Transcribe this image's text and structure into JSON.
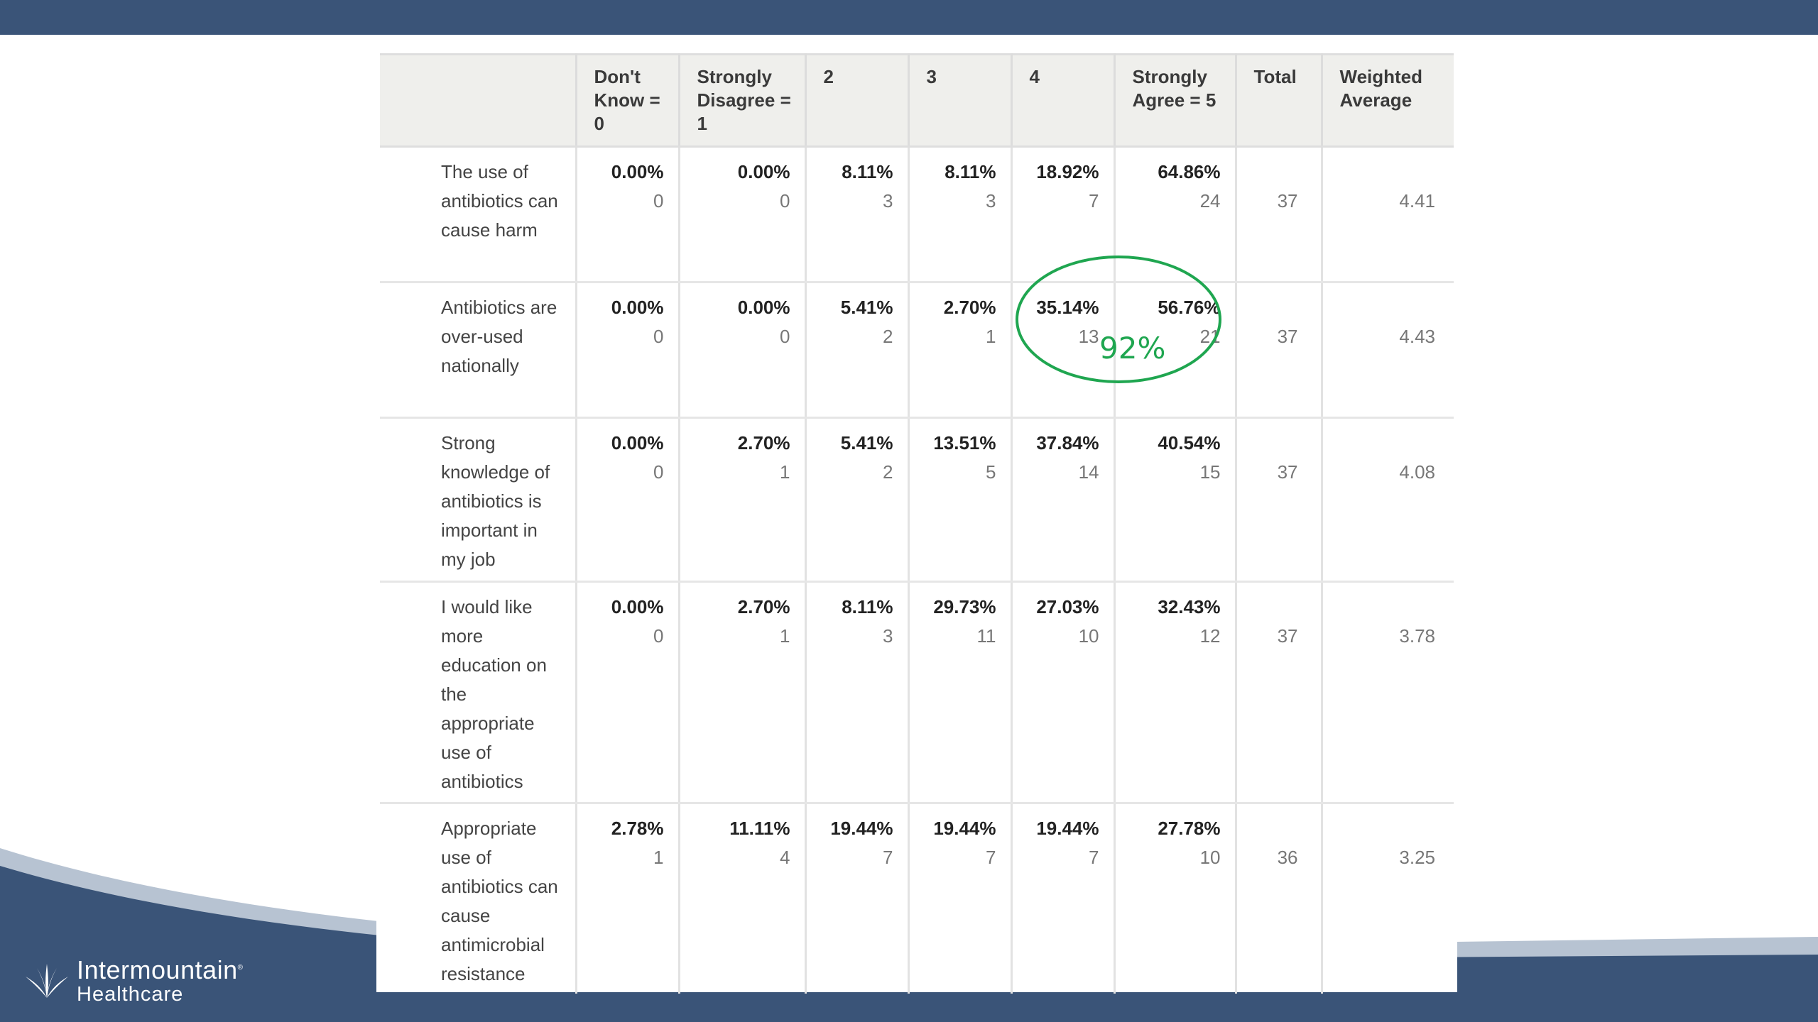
{
  "brand": {
    "line1": "Intermountain",
    "line2": "Healthcare",
    "trademark": "®",
    "logo_icon": "intermountain-leaf-logo-icon",
    "bar_color": "#3a5478",
    "accent_color": "#1fa650"
  },
  "table": {
    "headers": [
      "",
      "Don't Know = 0",
      "Strongly Disagree = 1",
      "2",
      "3",
      "4",
      "Strongly Agree = 5",
      "Total",
      "Weighted Average"
    ],
    "rows": [
      {
        "question": "The use of antibiotics can cause harm",
        "cells": [
          {
            "pct": "0.00%",
            "count": "0"
          },
          {
            "pct": "0.00%",
            "count": "0"
          },
          {
            "pct": "8.11%",
            "count": "3"
          },
          {
            "pct": "8.11%",
            "count": "3"
          },
          {
            "pct": "18.92%",
            "count": "7"
          },
          {
            "pct": "64.86%",
            "count": "24"
          }
        ],
        "total": "37",
        "weighted_average": "4.41"
      },
      {
        "question": "Antibiotics are over-used nationally",
        "cells": [
          {
            "pct": "0.00%",
            "count": "0"
          },
          {
            "pct": "0.00%",
            "count": "0"
          },
          {
            "pct": "5.41%",
            "count": "2"
          },
          {
            "pct": "2.70%",
            "count": "1"
          },
          {
            "pct": "35.14%",
            "count": "13"
          },
          {
            "pct": "56.76%",
            "count": "21"
          }
        ],
        "total": "37",
        "weighted_average": "4.43"
      },
      {
        "question": "Strong knowledge of antibiotics is important in my job",
        "cells": [
          {
            "pct": "0.00%",
            "count": "0"
          },
          {
            "pct": "2.70%",
            "count": "1"
          },
          {
            "pct": "5.41%",
            "count": "2"
          },
          {
            "pct": "13.51%",
            "count": "5"
          },
          {
            "pct": "37.84%",
            "count": "14"
          },
          {
            "pct": "40.54%",
            "count": "15"
          }
        ],
        "total": "37",
        "weighted_average": "4.08"
      },
      {
        "question": "I would like more education on the appropriate use of antibiotics",
        "cells": [
          {
            "pct": "0.00%",
            "count": "0"
          },
          {
            "pct": "2.70%",
            "count": "1"
          },
          {
            "pct": "8.11%",
            "count": "3"
          },
          {
            "pct": "29.73%",
            "count": "11"
          },
          {
            "pct": "27.03%",
            "count": "10"
          },
          {
            "pct": "32.43%",
            "count": "12"
          }
        ],
        "total": "37",
        "weighted_average": "3.78"
      },
      {
        "question": "Appropriate use of antibiotics can cause antimicrobial resistance",
        "cells": [
          {
            "pct": "2.78%",
            "count": "1"
          },
          {
            "pct": "11.11%",
            "count": "4"
          },
          {
            "pct": "19.44%",
            "count": "7"
          },
          {
            "pct": "19.44%",
            "count": "7"
          },
          {
            "pct": "19.44%",
            "count": "7"
          },
          {
            "pct": "27.78%",
            "count": "10"
          }
        ],
        "total": "36",
        "weighted_average": "3.25"
      }
    ]
  },
  "annotation": {
    "label": "92%"
  }
}
